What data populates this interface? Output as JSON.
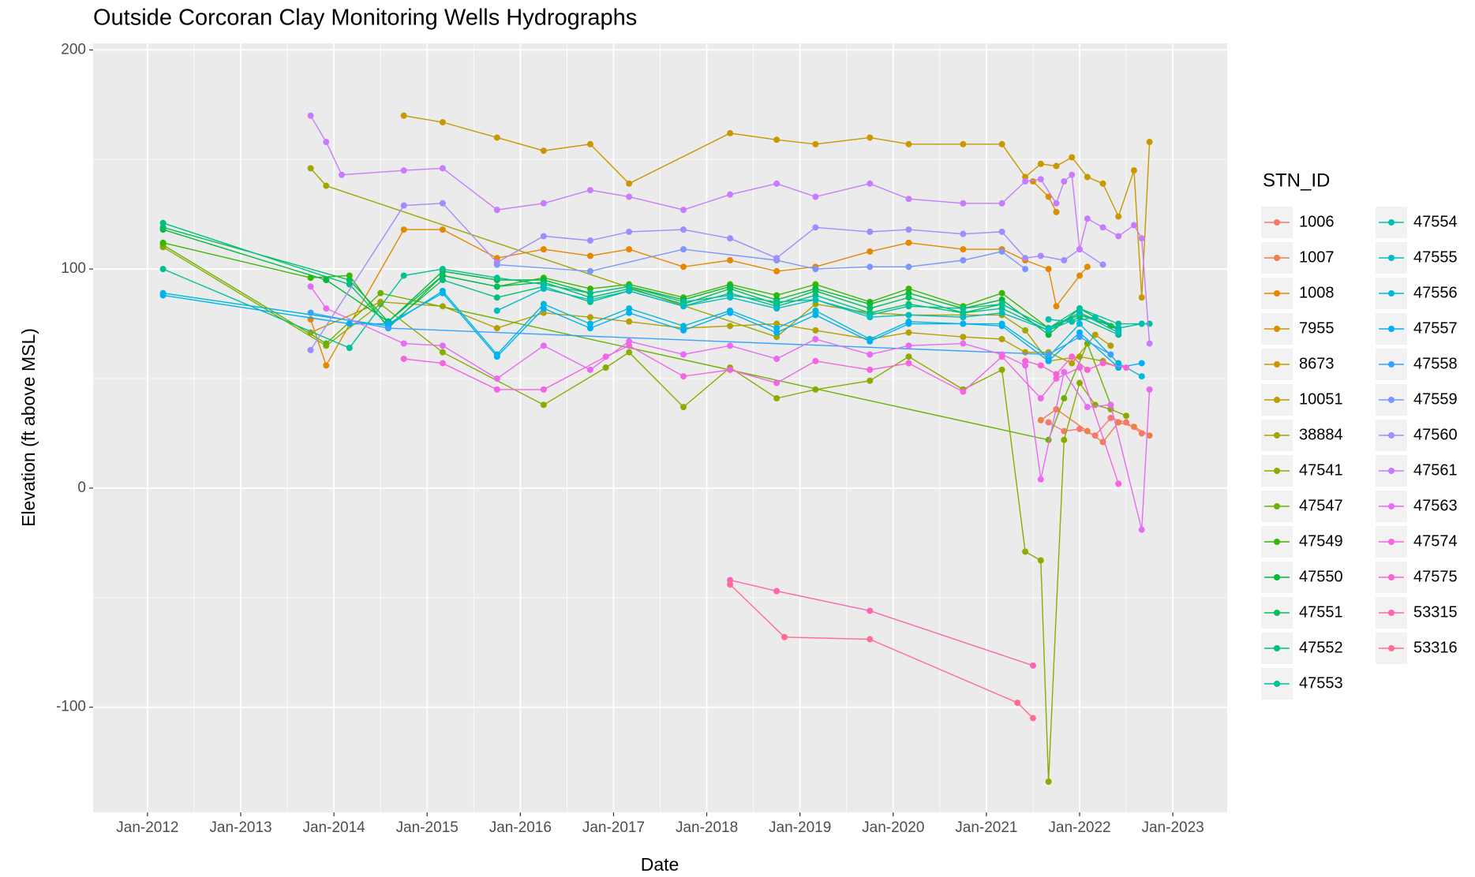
{
  "chart_data": {
    "type": "line",
    "title": "Outside Corcoran Clay Monitoring Wells Hydrographs",
    "x_label": "Date",
    "y_label": "Elevation (ft above MSL)",
    "legend_title": "STN_ID",
    "xlim": [
      "2011-06",
      "2023-08"
    ],
    "ylim": [
      -148,
      203
    ],
    "xticks": [
      {
        "value": "2012-01",
        "label": "Jan-2012"
      },
      {
        "value": "2013-01",
        "label": "Jan-2013"
      },
      {
        "value": "2014-01",
        "label": "Jan-2014"
      },
      {
        "value": "2015-01",
        "label": "Jan-2015"
      },
      {
        "value": "2016-01",
        "label": "Jan-2016"
      },
      {
        "value": "2017-01",
        "label": "Jan-2017"
      },
      {
        "value": "2018-01",
        "label": "Jan-2018"
      },
      {
        "value": "2019-01",
        "label": "Jan-2019"
      },
      {
        "value": "2020-01",
        "label": "Jan-2020"
      },
      {
        "value": "2021-01",
        "label": "Jan-2021"
      },
      {
        "value": "2022-01",
        "label": "Jan-2022"
      },
      {
        "value": "2023-01",
        "label": "Jan-2023"
      }
    ],
    "yticks": [
      -100,
      0,
      100,
      200
    ],
    "grid": true,
    "legend": "right",
    "series": [
      {
        "name": "1006",
        "color": "#F8766D",
        "x": [
          "2021-09",
          "2021-11",
          "2022-01",
          "2022-03",
          "2022-05",
          "2022-07",
          "2022-09"
        ],
        "values": [
          30,
          26,
          27,
          24,
          32,
          30,
          25
        ]
      },
      {
        "name": "1007",
        "color": "#EF7F49",
        "x": [
          "2021-08",
          "2021-10",
          "2022-02",
          "2022-04",
          "2022-06",
          "2022-08",
          "2022-10"
        ],
        "values": [
          31,
          36,
          26,
          21,
          30,
          28,
          24
        ]
      },
      {
        "name": "1008",
        "color": "#E58700",
        "x": [
          "2013-10",
          "2013-12",
          "2014-10",
          "2015-03",
          "2015-10",
          "2016-04",
          "2016-10",
          "2017-03",
          "2017-10",
          "2018-04",
          "2018-10",
          "2019-03",
          "2019-10",
          "2020-03",
          "2020-10",
          "2021-03",
          "2021-06",
          "2021-09",
          "2021-10",
          "2022-01",
          "2022-02"
        ],
        "values": [
          77,
          56,
          118,
          118,
          105,
          109,
          106,
          109,
          101,
          104,
          99,
          101,
          108,
          112,
          109,
          109,
          104,
          100,
          83,
          97,
          101
        ]
      },
      {
        "name": "7955",
        "color": "#D89000",
        "x": [
          "2021-07",
          "2021-09",
          "2021-10"
        ],
        "values": [
          140,
          133,
          126
        ]
      },
      {
        "name": "8673",
        "color": "#C99800",
        "x": [
          "2014-10",
          "2015-03",
          "2015-10",
          "2016-04",
          "2016-10",
          "2017-03",
          "2018-04",
          "2018-10",
          "2019-03",
          "2019-10",
          "2020-03",
          "2020-10",
          "2021-03",
          "2021-06",
          "2021-08",
          "2021-10",
          "2021-12",
          "2022-02",
          "2022-04",
          "2022-06",
          "2022-08",
          "2022-09",
          "2022-10"
        ],
        "values": [
          170,
          167,
          160,
          154,
          157,
          139,
          162,
          159,
          157,
          160,
          157,
          157,
          157,
          142,
          148,
          147,
          151,
          142,
          139,
          124,
          145,
          87,
          158
        ]
      },
      {
        "name": "10051",
        "color": "#B79F00",
        "x": [
          "2013-10",
          "2014-07",
          "2015-03",
          "2015-10",
          "2016-04",
          "2016-10",
          "2017-03",
          "2017-10",
          "2018-04",
          "2018-10",
          "2019-03",
          "2019-10",
          "2020-03",
          "2020-10",
          "2021-03",
          "2021-06",
          "2021-09",
          "2021-12",
          "2022-03",
          "2022-05"
        ],
        "values": [
          71,
          85,
          83,
          73,
          80,
          78,
          76,
          73,
          74,
          75,
          72,
          68,
          71,
          69,
          68,
          62,
          62,
          57,
          70,
          65
        ]
      },
      {
        "name": "38884",
        "color": "#A3A500",
        "x": [
          "2013-10",
          "2013-12",
          "2018-10",
          "2019-03",
          "2019-10",
          "2020-03",
          "2020-10",
          "2021-03",
          "2021-06",
          "2021-09",
          "2022-01",
          "2022-04",
          "2022-06"
        ],
        "values": [
          146,
          138,
          69,
          84,
          80,
          79,
          79,
          79,
          72,
          58,
          60,
          58,
          55
        ]
      },
      {
        "name": "47541",
        "color": "#8BAB00",
        "x": [
          "2012-03",
          "2013-12",
          "2014-07",
          "2015-03",
          "2016-04",
          "2016-12",
          "2017-03",
          "2017-10",
          "2018-04",
          "2018-10",
          "2019-03",
          "2019-10",
          "2020-03",
          "2020-10",
          "2021-03",
          "2021-06",
          "2021-08",
          "2021-09",
          "2021-11",
          "2022-01",
          "2022-03",
          "2022-05",
          "2022-07"
        ],
        "values": [
          110,
          65,
          84,
          62,
          38,
          55,
          62,
          37,
          55,
          41,
          45,
          49,
          60,
          45,
          54,
          -29,
          -33,
          -134,
          22,
          48,
          38,
          36,
          33
        ]
      },
      {
        "name": "47547",
        "color": "#6BB100",
        "x": [
          "2012-03",
          "2013-12",
          "2014-07",
          "2021-09",
          "2021-11",
          "2022-02",
          "2022-05"
        ],
        "values": [
          111,
          66,
          89,
          22,
          41,
          66,
          38
        ]
      },
      {
        "name": "47549",
        "color": "#39B600",
        "x": [
          "2012-03",
          "2013-10",
          "2014-03",
          "2014-08",
          "2015-03",
          "2015-10",
          "2016-04",
          "2016-10",
          "2017-03",
          "2017-10",
          "2018-04",
          "2018-10",
          "2019-03",
          "2019-10",
          "2020-03",
          "2020-10",
          "2021-03",
          "2021-09",
          "2022-01",
          "2022-05"
        ],
        "values": [
          112,
          96,
          97,
          73,
          97,
          92,
          96,
          91,
          93,
          87,
          93,
          88,
          93,
          85,
          91,
          83,
          89,
          73,
          80,
          74
        ]
      },
      {
        "name": "47550",
        "color": "#00BA38",
        "x": [
          "2012-03",
          "2013-12",
          "2014-08",
          "2015-03",
          "2015-10",
          "2016-04",
          "2016-10",
          "2017-03",
          "2017-10",
          "2018-04",
          "2018-10",
          "2019-03",
          "2019-10",
          "2020-03",
          "2020-10",
          "2021-03",
          "2021-09",
          "2022-01",
          "2022-06"
        ],
        "values": [
          118,
          95,
          76,
          99,
          95,
          95,
          89,
          92,
          86,
          92,
          86,
          91,
          84,
          89,
          82,
          86,
          70,
          82,
          72
        ]
      },
      {
        "name": "47551",
        "color": "#00BD5C",
        "x": [
          "2012-03",
          "2014-03",
          "2014-08",
          "2015-03",
          "2015-10",
          "2016-04",
          "2016-10",
          "2017-03",
          "2017-10",
          "2018-04",
          "2018-10",
          "2019-03",
          "2019-10",
          "2020-03",
          "2020-10",
          "2021-03",
          "2021-09",
          "2022-01",
          "2022-06"
        ],
        "values": [
          119,
          95,
          76,
          97,
          92,
          94,
          87,
          91,
          84,
          91,
          84,
          90,
          82,
          87,
          80,
          84,
          73,
          79,
          73
        ]
      },
      {
        "name": "47552",
        "color": "#00C079",
        "x": [
          "2012-03",
          "2014-03",
          "2014-08",
          "2015-03",
          "2015-10",
          "2016-04",
          "2016-10",
          "2017-03",
          "2017-10",
          "2018-04",
          "2018-10",
          "2019-03",
          "2019-10",
          "2020-03",
          "2020-10",
          "2021-03",
          "2021-09",
          "2022-01",
          "2022-06"
        ],
        "values": [
          121,
          93,
          74,
          95,
          87,
          92,
          85,
          90,
          83,
          89,
          83,
          88,
          80,
          84,
          80,
          82,
          72,
          78,
          70
        ]
      },
      {
        "name": "47553",
        "color": "#00C094",
        "x": [
          "2012-03",
          "2014-03",
          "2014-10",
          "2015-03",
          "2015-10",
          "2016-04",
          "2016-10",
          "2017-03",
          "2017-10",
          "2018-04",
          "2018-10",
          "2019-03",
          "2019-10",
          "2020-03",
          "2020-10",
          "2021-03",
          "2021-09",
          "2022-01",
          "2022-06",
          "2022-10"
        ],
        "values": [
          100,
          64,
          97,
          100,
          96,
          93,
          89,
          92,
          85,
          88,
          85,
          86,
          79,
          83,
          82,
          84,
          73,
          82,
          75,
          75
        ]
      },
      {
        "name": "47554",
        "color": "#00BFAE",
        "x": [
          "2021-09",
          "2021-12",
          "2022-03",
          "2022-06",
          "2022-09"
        ],
        "values": [
          77,
          76,
          78,
          73,
          75
        ]
      },
      {
        "name": "47555",
        "color": "#00BDC4",
        "x": [
          "2015-10",
          "2016-04",
          "2016-10",
          "2017-03",
          "2017-10",
          "2018-04",
          "2018-10",
          "2019-03",
          "2019-10",
          "2020-03",
          "2020-10",
          "2021-03",
          "2021-09",
          "2022-01",
          "2022-06"
        ],
        "values": [
          81,
          91,
          86,
          90,
          83,
          87,
          82,
          86,
          78,
          79,
          78,
          80,
          72,
          80,
          71
        ]
      },
      {
        "name": "47556",
        "color": "#00B8D9",
        "x": [
          "2012-03",
          "2014-08",
          "2015-03",
          "2015-10",
          "2016-04",
          "2016-10",
          "2017-03",
          "2017-10",
          "2018-04",
          "2018-10",
          "2019-03",
          "2019-10",
          "2020-03",
          "2020-10",
          "2021-03",
          "2021-09",
          "2022-01",
          "2022-06",
          "2022-09"
        ],
        "values": [
          89,
          74,
          90,
          61,
          84,
          75,
          82,
          74,
          81,
          73,
          81,
          68,
          76,
          75,
          75,
          60,
          75,
          57,
          51
        ]
      },
      {
        "name": "47557",
        "color": "#00B0F6",
        "x": [
          "2012-03",
          "2014-03",
          "2014-08",
          "2015-03",
          "2015-10",
          "2016-04",
          "2016-10",
          "2017-03",
          "2017-10",
          "2018-04",
          "2018-10",
          "2019-03",
          "2019-10",
          "2020-03",
          "2020-10",
          "2021-03",
          "2021-09",
          "2022-01",
          "2022-06",
          "2022-09"
        ],
        "values": [
          88,
          75,
          75,
          89,
          60,
          82,
          73,
          80,
          72,
          80,
          71,
          79,
          67,
          75,
          75,
          74,
          58,
          71,
          55,
          57
        ]
      },
      {
        "name": "47558",
        "color": "#35A2FF",
        "x": [
          "2013-10",
          "2014-08",
          "2021-09",
          "2022-01",
          "2022-05"
        ],
        "values": [
          80,
          73,
          61,
          69,
          61
        ]
      },
      {
        "name": "47559",
        "color": "#7C96FF",
        "x": [
          "2015-10",
          "2016-10",
          "2017-10",
          "2018-10",
          "2019-03",
          "2019-10",
          "2020-03",
          "2020-10",
          "2021-03",
          "2021-06"
        ],
        "values": [
          102,
          99,
          109,
          104,
          100,
          101,
          101,
          104,
          108,
          100
        ]
      },
      {
        "name": "47560",
        "color": "#A58AFF",
        "x": [
          "2013-10",
          "2014-10",
          "2015-03",
          "2015-10",
          "2016-04",
          "2016-10",
          "2017-03",
          "2017-10",
          "2018-04",
          "2018-10",
          "2019-03",
          "2019-10",
          "2020-03",
          "2020-10",
          "2021-03",
          "2021-06",
          "2021-08",
          "2021-11",
          "2022-01",
          "2022-04"
        ],
        "values": [
          63,
          129,
          130,
          103,
          115,
          113,
          117,
          118,
          114,
          105,
          119,
          117,
          118,
          116,
          117,
          105,
          106,
          104,
          109,
          102
        ]
      },
      {
        "name": "47561",
        "color": "#C77CFF",
        "x": [
          "2013-10",
          "2013-12",
          "2014-02",
          "2014-10",
          "2015-03",
          "2015-10",
          "2016-04",
          "2016-10",
          "2017-03",
          "2017-10",
          "2018-04",
          "2018-10",
          "2019-03",
          "2019-10",
          "2020-03",
          "2020-10",
          "2021-03",
          "2021-06",
          "2021-08",
          "2021-10",
          "2021-11",
          "2021-12",
          "2022-01",
          "2022-02",
          "2022-04",
          "2022-06",
          "2022-08",
          "2022-09",
          "2022-10"
        ],
        "values": [
          170,
          158,
          143,
          145,
          146,
          127,
          130,
          136,
          133,
          127,
          134,
          139,
          133,
          139,
          132,
          130,
          130,
          140,
          141,
          130,
          140,
          143,
          109,
          123,
          119,
          115,
          120,
          114,
          66
        ]
      },
      {
        "name": "47563",
        "color": "#E76BF3",
        "x": [
          "2013-10",
          "2013-12",
          "2014-10",
          "2015-03",
          "2015-10",
          "2016-04",
          "2016-10",
          "2017-03",
          "2017-10",
          "2018-04",
          "2018-10",
          "2019-03",
          "2019-10",
          "2020-03",
          "2020-10",
          "2021-03",
          "2021-06",
          "2021-08",
          "2021-11",
          "2022-02",
          "2022-05",
          "2022-09",
          "2022-10"
        ],
        "values": [
          92,
          82,
          66,
          65,
          50,
          65,
          54,
          67,
          61,
          65,
          59,
          68,
          61,
          65,
          66,
          61,
          56,
          4,
          53,
          37,
          38,
          -19,
          45
        ]
      },
      {
        "name": "47574",
        "color": "#F564E3",
        "x": [
          "2014-10",
          "2015-03",
          "2015-10",
          "2016-04",
          "2016-12",
          "2017-03",
          "2017-10",
          "2018-04",
          "2018-10",
          "2019-03",
          "2019-10",
          "2020-03",
          "2020-10",
          "2021-03",
          "2021-08",
          "2021-10",
          "2022-01",
          "2022-06"
        ],
        "values": [
          59,
          57,
          45,
          45,
          60,
          65,
          51,
          54,
          48,
          58,
          54,
          57,
          44,
          60,
          41,
          50,
          55,
          2
        ]
      },
      {
        "name": "47575",
        "color": "#FD61D1",
        "x": [
          "2021-06",
          "2021-08",
          "2021-10",
          "2021-12",
          "2022-02",
          "2022-04",
          "2022-07"
        ],
        "values": [
          58,
          56,
          52,
          60,
          54,
          57,
          55
        ]
      },
      {
        "name": "53315",
        "color": "#FF64B0",
        "x": [
          "2018-04",
          "2018-10",
          "2019-10",
          "2021-07"
        ],
        "values": [
          -42,
          -47,
          -56,
          -81
        ]
      },
      {
        "name": "53316",
        "color": "#FF6C91",
        "x": [
          "2018-04",
          "2018-11",
          "2019-10",
          "2021-05",
          "2021-07"
        ],
        "values": [
          -44,
          -68,
          -69,
          -98,
          -105
        ]
      }
    ]
  }
}
